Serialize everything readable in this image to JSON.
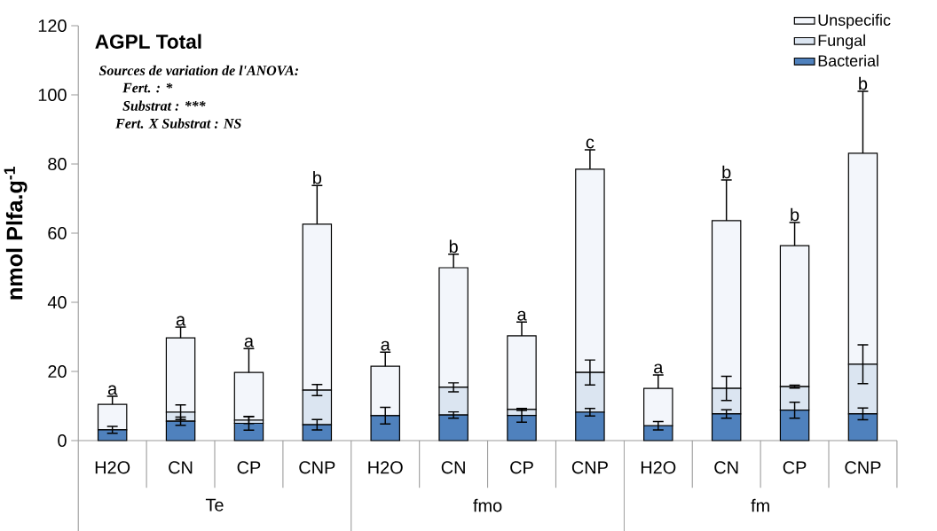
{
  "chart_data": {
    "type": "bar",
    "title": "AGPL Total",
    "ylabel": "nmol Plfa.g$^{-1}$",
    "categories": [
      "H2O",
      "CN",
      "CP",
      "CNP",
      "H2O",
      "CN",
      "CP",
      "CNP",
      "H2O",
      "CN",
      "CP",
      "CNP"
    ],
    "stacked": true,
    "ylim": [
      0,
      120
    ],
    "yticks": [
      0,
      20,
      40,
      60,
      80,
      100,
      120
    ],
    "grid": false,
    "legend": "top right",
    "series": [
      {
        "name": "Bacterial",
        "color": "#4f81bd",
        "values": [
          3.1,
          5.6,
          5.0,
          4.6,
          7.2,
          7.4,
          7.3,
          8.2,
          4.3,
          7.7,
          8.8,
          7.7
        ],
        "errors": [
          [
            2.1,
            4.1
          ],
          [
            4.4,
            6.8
          ],
          [
            3.0,
            7.0
          ],
          [
            3.1,
            6.1
          ],
          [
            4.8,
            9.6
          ],
          [
            6.5,
            8.3
          ],
          [
            5.3,
            9.3
          ],
          [
            7.1,
            9.3
          ],
          [
            3.1,
            5.5
          ],
          [
            6.5,
            8.9
          ],
          [
            6.5,
            11.1
          ],
          [
            6.0,
            9.4
          ]
        ]
      },
      {
        "name": "Fungal",
        "color": "#dbe5f1",
        "values": [
          0,
          2.6,
          0.9,
          10.0,
          0,
          8.0,
          1.7,
          11.5,
          0,
          7.4,
          6.8,
          14.4
        ],
        "errors": [
          null,
          [
            6.1,
            10.3
          ],
          [
            4.9,
            6.9
          ],
          [
            13.0,
            16.2
          ],
          null,
          [
            14.1,
            16.7
          ],
          [
            8.7,
            9.3
          ],
          [
            16.1,
            23.3
          ],
          null,
          [
            11.6,
            18.6
          ],
          [
            15.2,
            16.0
          ],
          [
            16.5,
            27.7
          ]
        ]
      },
      {
        "name": "Unspecific",
        "color": "#f3f6fb",
        "values": [
          7.4,
          21.5,
          13.8,
          48.0,
          14.3,
          34.6,
          21.3,
          58.8,
          10.8,
          48.5,
          40.8,
          61.0
        ],
        "errors": [
          [
            10.5,
            12.8
          ],
          [
            29.7,
            32.8
          ],
          [
            19.7,
            26.6
          ],
          [
            62.6,
            73.8
          ],
          [
            21.5,
            25.6
          ],
          [
            50.0,
            53.9
          ],
          [
            30.3,
            34.3
          ],
          [
            78.5,
            84.1
          ],
          [
            15.1,
            19.0
          ],
          [
            63.6,
            75.4
          ],
          [
            56.4,
            63.1
          ],
          [
            83.1,
            101
          ]
        ]
      }
    ],
    "annotations": [
      "Sources de variation de l'ANOVA:",
      "Fert. : *",
      "Substrat : ***",
      "Fert. X Substrat : NS",
      "Te",
      "fmo",
      "fm",
      {
        "text": "a",
        "y": 12.8
      },
      {
        "text": "a",
        "y": 32.8
      },
      {
        "text": "a",
        "y": 26.6
      },
      {
        "text": "b",
        "y": 73.8
      },
      {
        "text": "a",
        "y": 25.6
      },
      {
        "text": "b",
        "y": 53.9
      },
      {
        "text": "a",
        "y": 34.3
      },
      {
        "text": "c",
        "y": 84.1
      },
      {
        "text": "a",
        "y": 19.0
      },
      {
        "text": "b",
        "y": 75.4
      },
      {
        "text": "b",
        "y": 63.1
      },
      {
        "text": "b",
        "y": 101
      }
    ]
  }
}
